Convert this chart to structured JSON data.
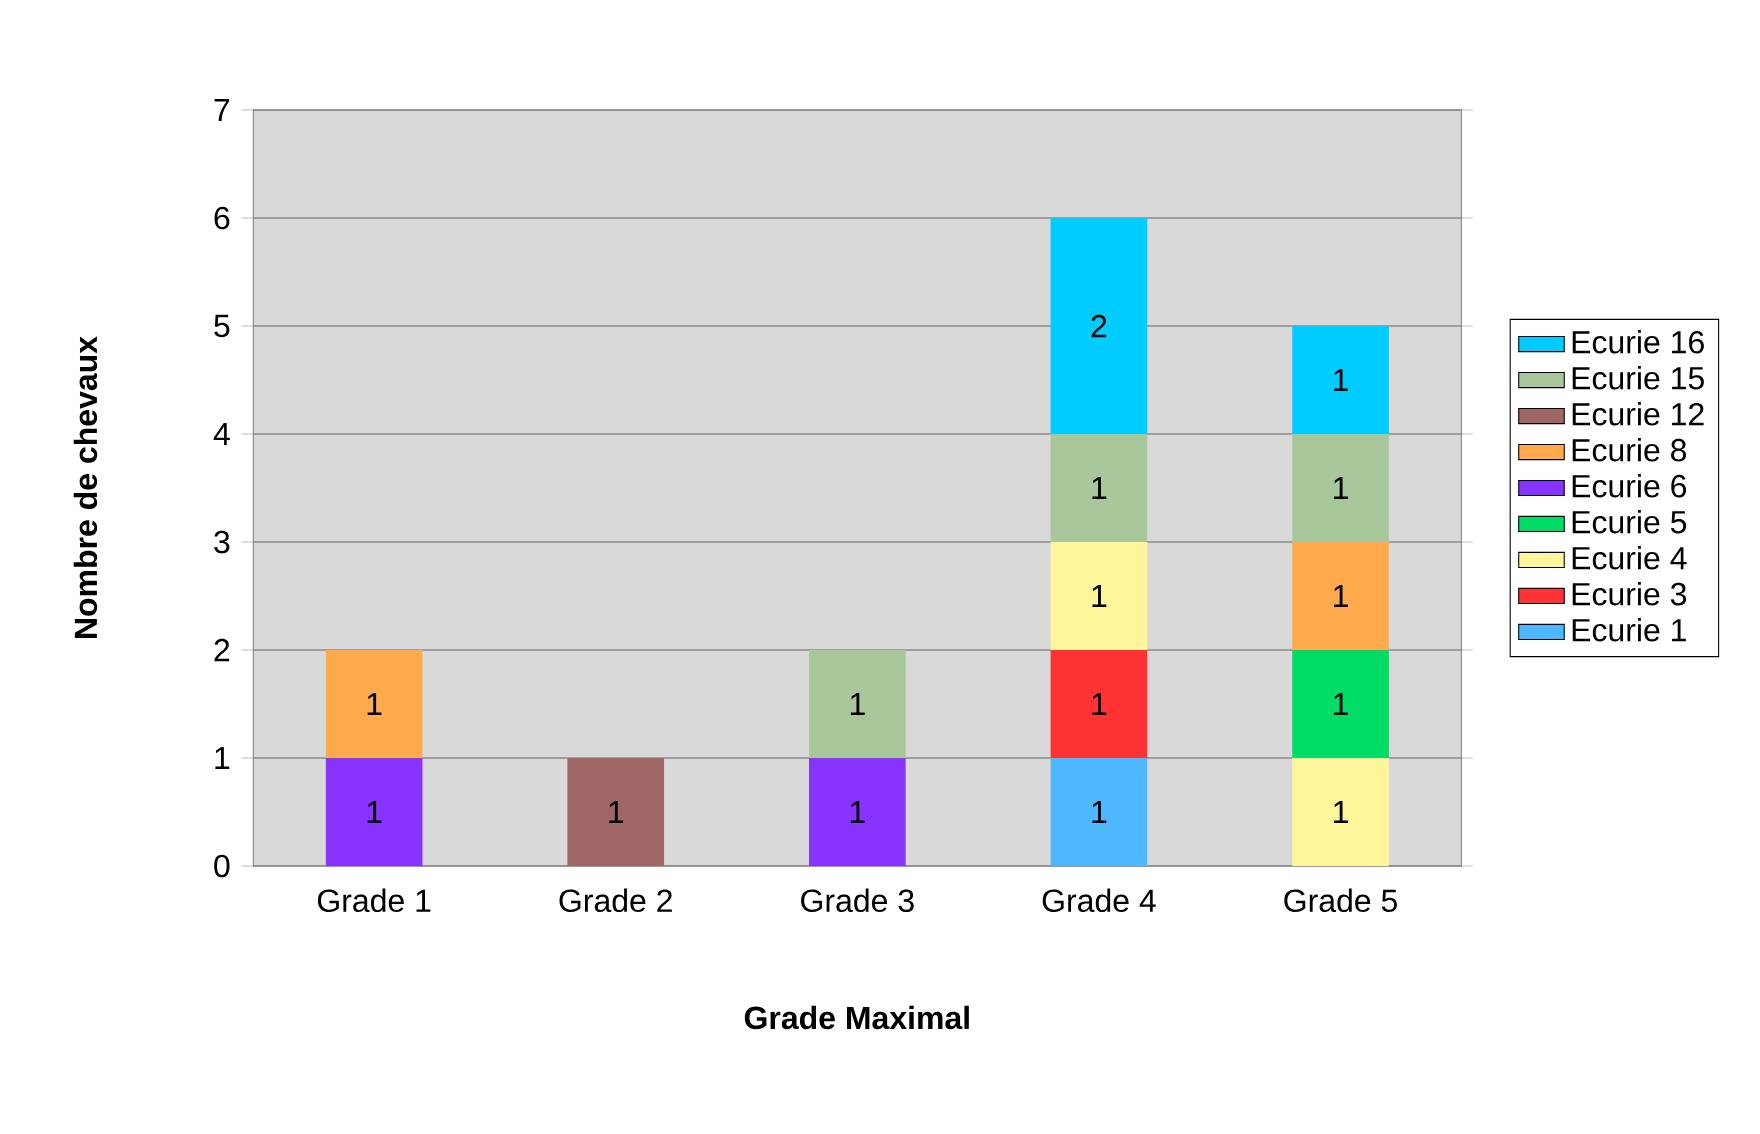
{
  "chart_data": {
    "type": "bar",
    "stacked": true,
    "xlabel": "Grade Maximal",
    "ylabel": "Nombre de chevaux",
    "categories": [
      "Grade 1",
      "Grade 2",
      "Grade 3",
      "Grade 4",
      "Grade 5"
    ],
    "series": [
      {
        "name": "Ecurie 1",
        "color": "#4db8ff",
        "values": [
          null,
          null,
          null,
          1,
          null
        ]
      },
      {
        "name": "Ecurie 3",
        "color": "#ff3333",
        "values": [
          null,
          null,
          null,
          1,
          null
        ]
      },
      {
        "name": "Ecurie 4",
        "color": "#fff59a",
        "values": [
          null,
          null,
          null,
          1,
          1
        ]
      },
      {
        "name": "Ecurie 5",
        "color": "#00dd66",
        "values": [
          null,
          null,
          null,
          null,
          1
        ]
      },
      {
        "name": "Ecurie 6",
        "color": "#8833ff",
        "values": [
          1,
          null,
          1,
          null,
          null
        ]
      },
      {
        "name": "Ecurie 8",
        "color": "#ffaa4d",
        "values": [
          1,
          null,
          null,
          null,
          1
        ]
      },
      {
        "name": "Ecurie 12",
        "color": "#a06666",
        "values": [
          null,
          1,
          null,
          null,
          null
        ]
      },
      {
        "name": "Ecurie 15",
        "color": "#a8c89c",
        "values": [
          null,
          null,
          1,
          1,
          1
        ]
      },
      {
        "name": "Ecurie 16",
        "color": "#00ccff",
        "values": [
          null,
          null,
          null,
          2,
          1
        ]
      }
    ],
    "ylim": [
      0,
      7
    ],
    "yticks": [
      0,
      1,
      2,
      3,
      4,
      5,
      6,
      7
    ],
    "grid": "y",
    "legend": "right",
    "data_labels": true
  }
}
